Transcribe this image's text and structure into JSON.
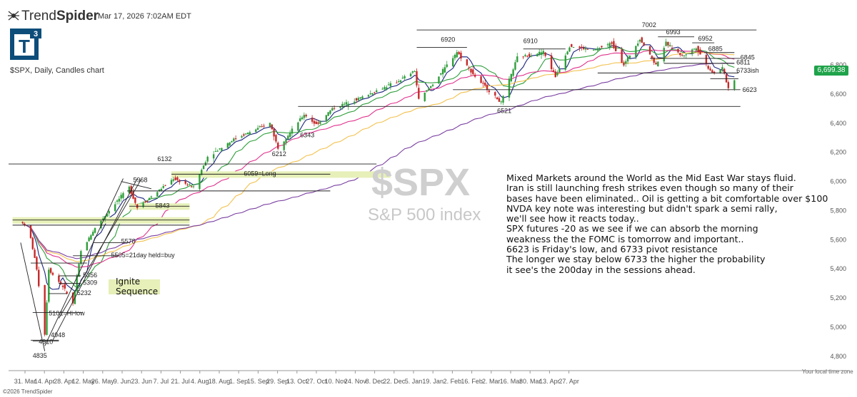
{
  "header": {
    "brand_name_light": "Trend",
    "brand_name_bold": "Spider",
    "timestamp": "Mar 17, 2026 7:02AM EDT",
    "logo_text": "T",
    "logo_superscript": "3",
    "subtitle": "$SPX, Daily, Candles chart"
  },
  "footer": {
    "copyright": "©2026 TrendSpider",
    "timezone_note": "Your local time zone"
  },
  "watermark": {
    "symbol": "$SPX",
    "name": "S&P 500 index"
  },
  "last_price": "6,699.38",
  "commentary": [
    "Mixed Markets around the World as the Mid East War stays fluid.",
    "Iran is still launching fresh strikes even though so many of their",
    "bases have been eliminated.. Oil is getting a bit comfortable over $100",
    "NVDA key note was interesting but didn't spark a semi rally,",
    "we'll see how it reacts today..",
    "SPX futures -20 as we see if we can absorb the morning",
    "weakness the the FOMC is tomorrow and important..",
    "6623 is Friday's low, and 6733 pivot resistance",
    "The longer we stay below 6733 the higher the probability",
    "it see's the 200day in the sessions ahead."
  ],
  "ignite": [
    "Ignite",
    "Sequence"
  ],
  "chart_data": {
    "type": "candlestick",
    "symbol": "$SPX",
    "timeframe": "Daily",
    "ylim": [
      4750,
      7060
    ],
    "y_ticks": [
      4800,
      5000,
      5200,
      5400,
      5600,
      5800,
      6000,
      6200,
      6400,
      6600,
      6800
    ],
    "y_tick_labels": [
      "4,800",
      "5,000",
      "5,200",
      "5,400",
      "5,600",
      "5,800",
      "6,000",
      "6,200",
      "6,400",
      "6,600",
      "6,800"
    ],
    "x_tick_labels": [
      "31. Mar",
      "14. Apr",
      "28. Apr",
      "12. May",
      "26. May",
      "9. Jun",
      "23. Jun",
      "7. Jul",
      "21. Jul",
      "4. Aug",
      "18. Aug",
      "1. Sep",
      "15. Sep",
      "29. Sep",
      "13. Oct",
      "27. Oct",
      "10. Nov",
      "24. Nov",
      "8. Dec",
      "22. Dec",
      "5. Jan",
      "19. Jan",
      "2. Feb",
      "16. Feb",
      "2. Mar",
      "16. Mar",
      "30. Mar",
      "13. Apr",
      "27. Apr"
    ],
    "close_path": [
      {
        "x": "2025-03-27",
        "y": 5720
      },
      {
        "x": "2025-03-31",
        "y": 5610
      },
      {
        "x": "2025-04-03",
        "y": 5400
      },
      {
        "x": "2025-04-07",
        "y": 4950
      },
      {
        "x": "2025-04-09",
        "y": 5400
      },
      {
        "x": "2025-04-11",
        "y": 5360
      },
      {
        "x": "2025-04-16",
        "y": 5280
      },
      {
        "x": "2025-04-21",
        "y": 5160
      },
      {
        "x": "2025-04-25",
        "y": 5520
      },
      {
        "x": "2025-05-02",
        "y": 5680
      },
      {
        "x": "2025-05-12",
        "y": 5850
      },
      {
        "x": "2025-05-19",
        "y": 5960
      },
      {
        "x": "2025-05-23",
        "y": 5820
      },
      {
        "x": "2025-06-02",
        "y": 5930
      },
      {
        "x": "2025-06-10",
        "y": 6020
      },
      {
        "x": "2025-06-20",
        "y": 5960
      },
      {
        "x": "2025-06-27",
        "y": 6170
      },
      {
        "x": "2025-07-10",
        "y": 6290
      },
      {
        "x": "2025-07-28",
        "y": 6400
      },
      {
        "x": "2025-08-01",
        "y": 6230
      },
      {
        "x": "2025-08-14",
        "y": 6460
      },
      {
        "x": "2025-08-20",
        "y": 6390
      },
      {
        "x": "2025-08-28",
        "y": 6500
      },
      {
        "x": "2025-09-12",
        "y": 6580
      },
      {
        "x": "2025-09-30",
        "y": 6690
      },
      {
        "x": "2025-10-08",
        "y": 6760
      },
      {
        "x": "2025-10-10",
        "y": 6560
      },
      {
        "x": "2025-10-17",
        "y": 6670
      },
      {
        "x": "2025-10-29",
        "y": 6890
      },
      {
        "x": "2025-11-07",
        "y": 6720
      },
      {
        "x": "2025-11-20",
        "y": 6540
      },
      {
        "x": "2025-11-28",
        "y": 6850
      },
      {
        "x": "2025-12-11",
        "y": 6890
      },
      {
        "x": "2025-12-17",
        "y": 6720
      },
      {
        "x": "2025-12-24",
        "y": 6930
      },
      {
        "x": "2026-01-05",
        "y": 6900
      },
      {
        "x": "2026-01-14",
        "y": 6950
      },
      {
        "x": "2026-01-20",
        "y": 6800
      },
      {
        "x": "2026-01-28",
        "y": 6980
      },
      {
        "x": "2026-02-05",
        "y": 6800
      },
      {
        "x": "2026-02-10",
        "y": 6950
      },
      {
        "x": "2026-02-18",
        "y": 6860
      },
      {
        "x": "2026-02-25",
        "y": 6920
      },
      {
        "x": "2026-03-03",
        "y": 6780
      },
      {
        "x": "2026-03-06",
        "y": 6740
      },
      {
        "x": "2026-03-10",
        "y": 6780
      },
      {
        "x": "2026-03-13",
        "y": 6640
      },
      {
        "x": "2026-03-16",
        "y": 6699
      }
    ],
    "moving_averages": [
      {
        "name": "8ema",
        "color": "#1a237e",
        "lag": 5
      },
      {
        "name": "21ema",
        "color": "#2e9e3a",
        "lag": 14
      },
      {
        "name": "50sma",
        "color": "#e0318c",
        "lag": 32
      },
      {
        "name": "100sma",
        "color": "#f2c14e",
        "lag": 60
      },
      {
        "name": "200sma",
        "color": "#7a3fa0",
        "lag": 115
      }
    ],
    "horizontal_levels": [
      {
        "label": "7002",
        "y": 7040,
        "x_from": "2025-10-09",
        "x_to": "2026-03-27"
      },
      {
        "label": "6920",
        "y": 6920,
        "x_from": "2025-10-09",
        "x_to": "2025-11-03"
      },
      {
        "label": "6910",
        "y": 6910,
        "x_from": "2025-12-01",
        "x_to": "2025-12-22"
      },
      {
        "label": "6993",
        "y": 6993,
        "x_from": "2026-02-06",
        "x_to": "2026-02-24"
      },
      {
        "label": "6952",
        "y": 6952,
        "x_from": "2026-02-23",
        "x_to": "2026-03-06"
      },
      {
        "label": "6885",
        "y": 6885,
        "x_from": "2026-03-01",
        "x_to": "2026-03-16"
      },
      {
        "label": "6845",
        "y": 6845,
        "x_from": "2026-02-02",
        "x_to": "2026-03-19"
      },
      {
        "label": "6811",
        "y": 6811,
        "x_from": "2026-02-09",
        "x_to": "2026-03-16"
      },
      {
        "label": "6733ish",
        "y": 6745,
        "x_from": "2026-01-07",
        "x_to": "2026-03-18"
      },
      {
        "label": "",
        "y": 6705,
        "x_from": "2026-03-04",
        "x_to": "2026-03-18"
      },
      {
        "label": "6623",
        "y": 6630,
        "x_from": "2025-10-27",
        "x_to": "2026-03-19"
      },
      {
        "label": "6521",
        "y": 6515,
        "x_from": "2025-08-11",
        "x_to": "2026-03-19"
      },
      {
        "label": "6132",
        "y": 6120,
        "x_from": "2025-03-20",
        "x_to": "2025-09-19"
      },
      {
        "label": "6059=Long",
        "y": 6050,
        "x_from": "2025-06-09",
        "x_to": "2025-08-27",
        "highlight": true
      },
      {
        "label": "",
        "y": 5935,
        "x_from": "2025-05-18",
        "x_to": "2025-08-27"
      },
      {
        "label": "5843",
        "y": 5830,
        "x_from": "2025-05-19",
        "x_to": "2025-06-18",
        "highlight": true
      },
      {
        "label": "",
        "y": 5735,
        "x_from": "2025-03-22",
        "x_to": "2025-06-18",
        "highlight": true
      },
      {
        "label": "",
        "y": 5700,
        "x_from": "2025-03-22",
        "x_to": "2025-06-18"
      },
      {
        "label": "5578",
        "y": 5580,
        "x_from": "2025-05-01",
        "x_to": "2025-05-19"
      },
      {
        "label": "5505=21day held=buy",
        "y": 5490,
        "x_from": "2025-04-21",
        "x_to": "2025-05-14"
      },
      {
        "label": "",
        "y": 5440,
        "x_from": "2025-03-31",
        "x_to": "2025-04-28"
      },
      {
        "label": "5356",
        "y": 5352,
        "x_from": "2025-04-14",
        "x_to": "2025-04-25"
      },
      {
        "label": "5309",
        "y": 5300,
        "x_from": "2025-04-14",
        "x_to": "2025-04-25"
      },
      {
        "label": "5232",
        "y": 5230,
        "x_from": "2025-04-09",
        "x_to": "2025-04-18"
      },
      {
        "label": "5101=Hi-low",
        "y": 5100,
        "x_from": "2025-04-01",
        "x_to": "2025-04-26"
      },
      {
        "label": "4948",
        "y": 4910,
        "x_from": "2025-03-31",
        "x_to": "2025-04-14"
      },
      {
        "label": "4910",
        "y": 4905,
        "x_from": "2025-04-01",
        "x_to": "2025-04-14"
      }
    ],
    "peak_labels": [
      {
        "label": "4835",
        "x": "2025-04-07",
        "y": 4835
      },
      {
        "label": "5968",
        "x": "2025-05-19",
        "y": 5968
      },
      {
        "label": "6212",
        "x": "2025-08-01",
        "y": 6212
      },
      {
        "label": "6343",
        "x": "2025-08-20",
        "y": 6343
      }
    ],
    "trendlines": [
      {
        "from": {
          "x": "2025-04-07",
          "y": 4870
        },
        "to": {
          "x": "2025-05-16",
          "y": 6020
        }
      },
      {
        "from": {
          "x": "2025-04-11",
          "y": 4910
        },
        "to": {
          "x": "2025-05-23",
          "y": 6020
        }
      },
      {
        "from": {
          "x": "2025-04-14",
          "y": 5060
        },
        "to": {
          "x": "2025-05-25",
          "y": 6015
        }
      },
      {
        "from": {
          "x": "2025-03-26",
          "y": 5580
        },
        "to": {
          "x": "2025-04-07",
          "y": 4835
        }
      },
      {
        "from": {
          "x": "2025-05-15",
          "y": 6000
        },
        "to": {
          "x": "2025-05-30",
          "y": 5950
        }
      }
    ],
    "legend": "none",
    "grid": false
  }
}
